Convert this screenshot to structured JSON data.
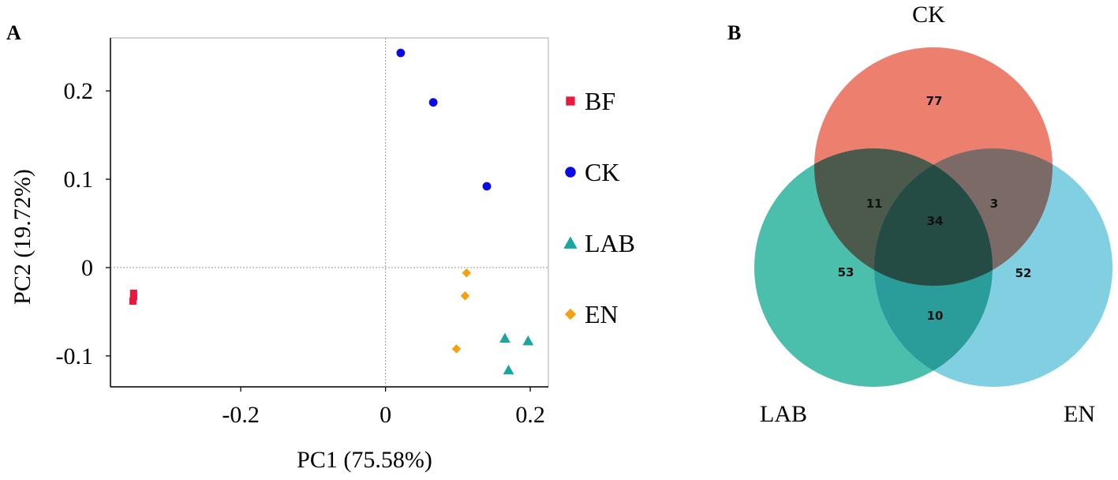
{
  "panels": {
    "a_label": "A",
    "b_label": "B"
  },
  "chart_data": [
    {
      "type": "scatter",
      "panel": "A",
      "xlabel": "PC1 (75.58%)",
      "ylabel": "PC2 (19.72%)",
      "xlim": [
        -0.38,
        0.225
      ],
      "ylim": [
        -0.135,
        0.26
      ],
      "xticks": [
        {
          "value": -0.2,
          "label": "-0.2"
        },
        {
          "value": 0,
          "label": "0"
        },
        {
          "value": 0.2,
          "label": "0.2"
        }
      ],
      "yticks": [
        {
          "value": 0.2,
          "label": "0.2"
        },
        {
          "value": 0.1,
          "label": "0.1"
        },
        {
          "value": 0,
          "label": "0"
        },
        {
          "value": -0.1,
          "label": "-0.1"
        }
      ],
      "reference_lines": {
        "x": 0,
        "y": 0
      },
      "series": [
        {
          "name": "BF",
          "marker": "square",
          "color": "#e8193c",
          "points": [
            [
              -0.348,
              -0.029
            ],
            [
              -0.348,
              -0.033
            ],
            [
              -0.349,
              -0.038
            ]
          ]
        },
        {
          "name": "CK",
          "marker": "circle",
          "color": "#0a0ae6",
          "points": [
            [
              0.021,
              0.243
            ],
            [
              0.066,
              0.187
            ],
            [
              0.14,
              0.092
            ]
          ]
        },
        {
          "name": "LAB",
          "marker": "triangle",
          "color": "#1aa6a0",
          "points": [
            [
              0.165,
              -0.08
            ],
            [
              0.197,
              -0.083
            ],
            [
              0.17,
              -0.116
            ]
          ]
        },
        {
          "name": "EN",
          "marker": "diamond",
          "color": "#f5a10f",
          "points": [
            [
              0.112,
              -0.006
            ],
            [
              0.11,
              -0.032
            ],
            [
              0.098,
              -0.092
            ]
          ]
        }
      ],
      "legend": {
        "position": "right"
      }
    },
    {
      "type": "venn",
      "panel": "B",
      "sets": [
        {
          "name": "CK",
          "color": "#ec6e5c"
        },
        {
          "name": "LAB",
          "color": "#20a990"
        },
        {
          "name": "EN",
          "color": "#5ec3db"
        }
      ],
      "regions": {
        "CK_only": "77",
        "LAB_only": "53",
        "EN_only": "52",
        "CK_LAB": "11",
        "CK_EN": "3",
        "LAB_EN": "10",
        "CK_LAB_EN": "34"
      }
    }
  ]
}
